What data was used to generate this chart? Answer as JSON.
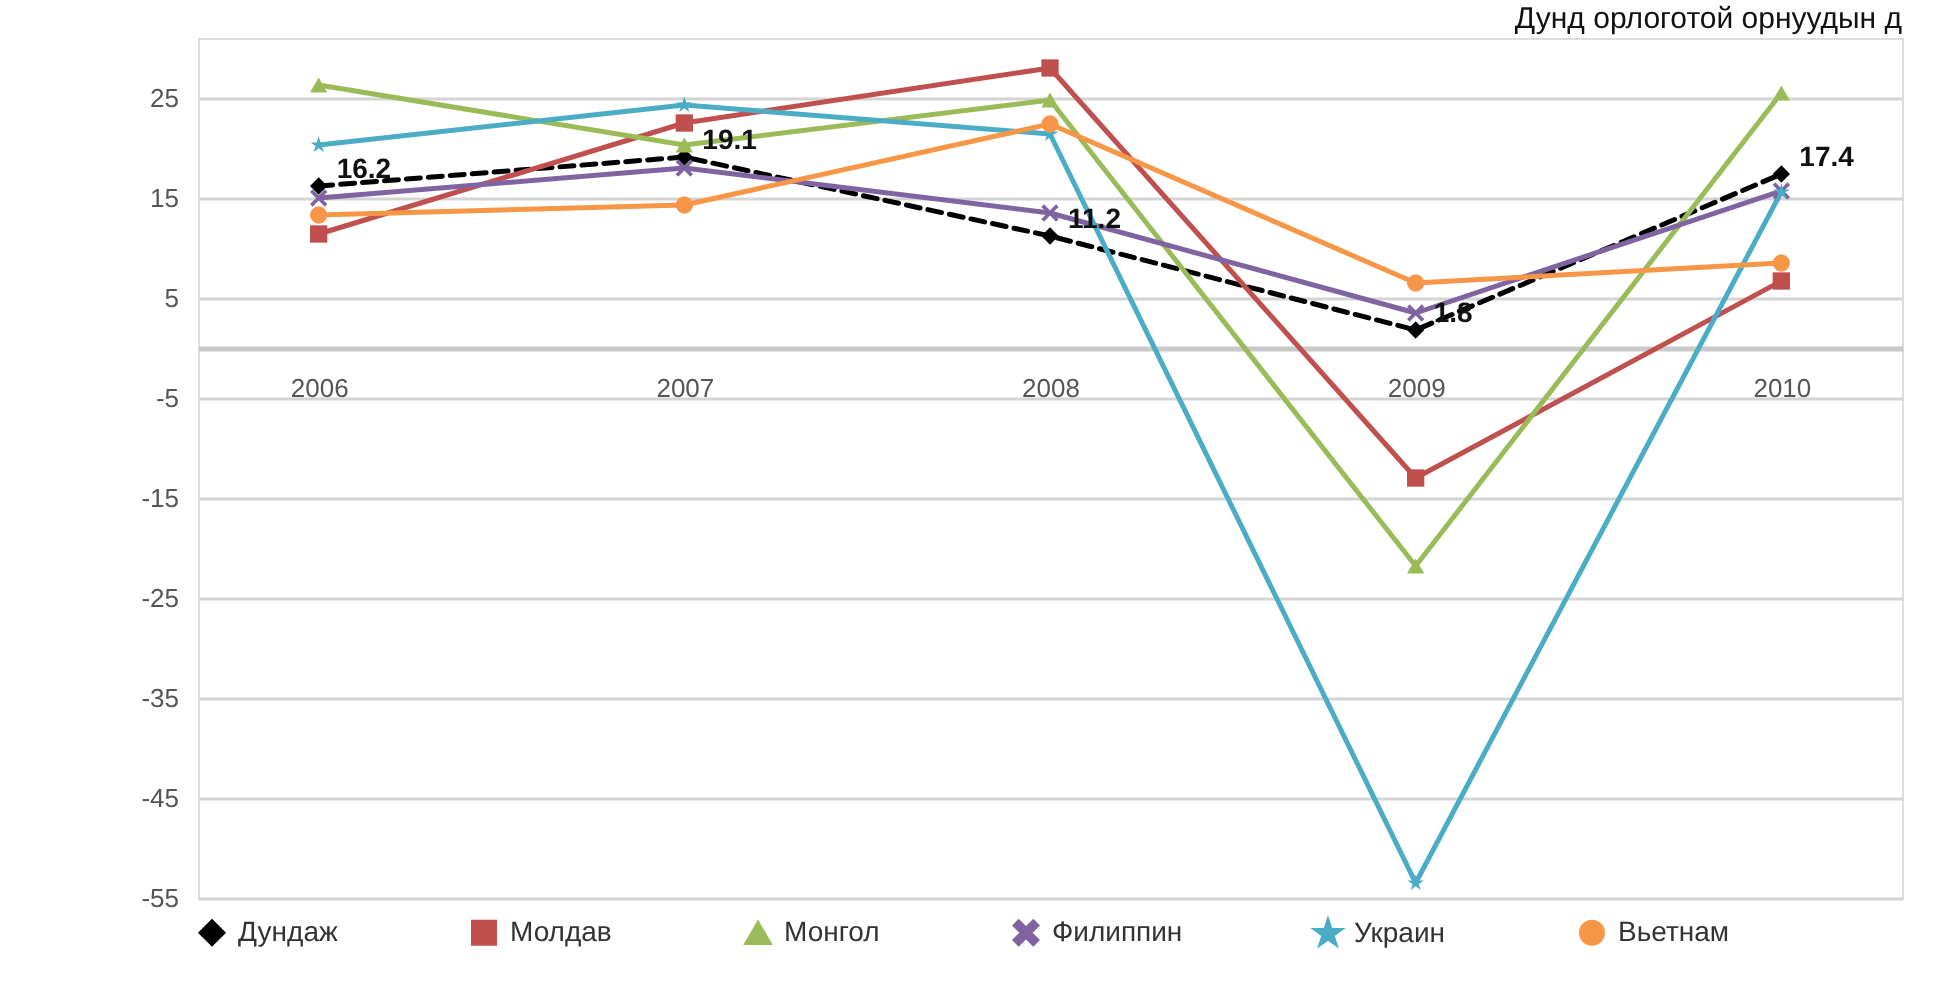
{
  "chart_data": {
    "type": "line",
    "title": "Дунд орлоготой орнуудын д",
    "categories": [
      "2006",
      "2007",
      "2008",
      "2009",
      "2010"
    ],
    "series": [
      {
        "name": "Дундаж",
        "color": "#000000",
        "marker": "diamond",
        "line_style": "dashed",
        "values": [
          16.2,
          19.1,
          11.2,
          1.8,
          17.4
        ],
        "value_labels": [
          "16.2",
          "19.1",
          "11.2",
          "1.8",
          "17.4"
        ]
      },
      {
        "name": "Молдав",
        "color": "#c0504d",
        "marker": "square",
        "line_style": "solid",
        "values": [
          11.4,
          22.5,
          28,
          -13,
          6.7
        ]
      },
      {
        "name": "Монгол",
        "color": "#9bbb59",
        "marker": "triangle",
        "line_style": "solid",
        "values": [
          26.3,
          20.3,
          24.8,
          -21.8,
          25.5
        ]
      },
      {
        "name": "Филиппин",
        "color": "#8064a2",
        "marker": "cross",
        "line_style": "solid",
        "values": [
          15,
          18,
          13.5,
          3.5,
          15.7
        ]
      },
      {
        "name": "Украин",
        "color": "#4bacc6",
        "marker": "star",
        "line_style": "solid",
        "values": [
          20.3,
          24.3,
          21.4,
          -53.5,
          15.6
        ]
      },
      {
        "name": "Вьетнам",
        "color": "#f79646",
        "marker": "circle",
        "line_style": "solid",
        "values": [
          13.3,
          14.3,
          22.4,
          6.5,
          8.5
        ]
      }
    ],
    "ylim": [
      -55,
      31
    ],
    "yticks": [
      -55,
      -45,
      -35,
      -25,
      -15,
      -5,
      5,
      15,
      25
    ],
    "grid": "y",
    "legend": "bottom"
  }
}
